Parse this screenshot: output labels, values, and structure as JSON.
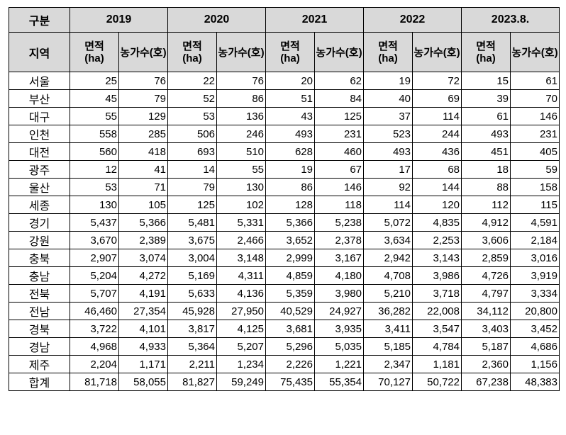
{
  "header": {
    "category_label": "구분",
    "region_label": "지역",
    "years": [
      "2019",
      "2020",
      "2021",
      "2022",
      "2023.8."
    ],
    "area_label_line1": "면적",
    "area_label_line2": "(ha)",
    "farms_label": "농가수(호)"
  },
  "rows": [
    {
      "region": "서울",
      "values": [
        "25",
        "76",
        "22",
        "76",
        "20",
        "62",
        "19",
        "72",
        "15",
        "61"
      ]
    },
    {
      "region": "부산",
      "values": [
        "45",
        "79",
        "52",
        "86",
        "51",
        "84",
        "40",
        "69",
        "39",
        "70"
      ]
    },
    {
      "region": "대구",
      "values": [
        "55",
        "129",
        "53",
        "136",
        "43",
        "125",
        "37",
        "114",
        "61",
        "146"
      ]
    },
    {
      "region": "인천",
      "values": [
        "558",
        "285",
        "506",
        "246",
        "493",
        "231",
        "523",
        "244",
        "493",
        "231"
      ]
    },
    {
      "region": "대전",
      "values": [
        "560",
        "418",
        "693",
        "510",
        "628",
        "460",
        "493",
        "436",
        "451",
        "405"
      ]
    },
    {
      "region": "광주",
      "values": [
        "12",
        "41",
        "14",
        "55",
        "19",
        "67",
        "17",
        "68",
        "18",
        "59"
      ]
    },
    {
      "region": "울산",
      "values": [
        "53",
        "71",
        "79",
        "130",
        "86",
        "146",
        "92",
        "144",
        "88",
        "158"
      ]
    },
    {
      "region": "세종",
      "values": [
        "130",
        "105",
        "125",
        "102",
        "128",
        "118",
        "114",
        "120",
        "112",
        "115"
      ]
    },
    {
      "region": "경기",
      "values": [
        "5,437",
        "5,366",
        "5,481",
        "5,331",
        "5,366",
        "5,238",
        "5,072",
        "4,835",
        "4,912",
        "4,591"
      ]
    },
    {
      "region": "강원",
      "values": [
        "3,670",
        "2,389",
        "3,675",
        "2,466",
        "3,652",
        "2,378",
        "3,634",
        "2,253",
        "3,606",
        "2,184"
      ]
    },
    {
      "region": "충북",
      "values": [
        "2,907",
        "3,074",
        "3,004",
        "3,148",
        "2,999",
        "3,167",
        "2,942",
        "3,143",
        "2,859",
        "3,016"
      ]
    },
    {
      "region": "충남",
      "values": [
        "5,204",
        "4,272",
        "5,169",
        "4,311",
        "4,859",
        "4,180",
        "4,708",
        "3,986",
        "4,726",
        "3,919"
      ]
    },
    {
      "region": "전북",
      "values": [
        "5,707",
        "4,191",
        "5,633",
        "4,136",
        "5,359",
        "3,980",
        "5,210",
        "3,718",
        "4,797",
        "3,334"
      ]
    },
    {
      "region": "전남",
      "values": [
        "46,460",
        "27,354",
        "45,928",
        "27,950",
        "40,529",
        "24,927",
        "36,282",
        "22,008",
        "34,112",
        "20,800"
      ]
    },
    {
      "region": "경북",
      "values": [
        "3,722",
        "4,101",
        "3,817",
        "4,125",
        "3,681",
        "3,935",
        "3,411",
        "3,547",
        "3,403",
        "3,452"
      ]
    },
    {
      "region": "경남",
      "values": [
        "4,968",
        "4,933",
        "5,364",
        "5,207",
        "5,296",
        "5,035",
        "5,185",
        "4,784",
        "5,187",
        "4,686"
      ]
    },
    {
      "region": "제주",
      "values": [
        "2,204",
        "1,171",
        "2,211",
        "1,234",
        "2,226",
        "1,221",
        "2,347",
        "1,181",
        "2,360",
        "1,156"
      ]
    },
    {
      "region": "합계",
      "values": [
        "81,718",
        "58,055",
        "81,827",
        "59,249",
        "75,435",
        "55,354",
        "70,127",
        "50,722",
        "67,238",
        "48,383"
      ]
    }
  ]
}
